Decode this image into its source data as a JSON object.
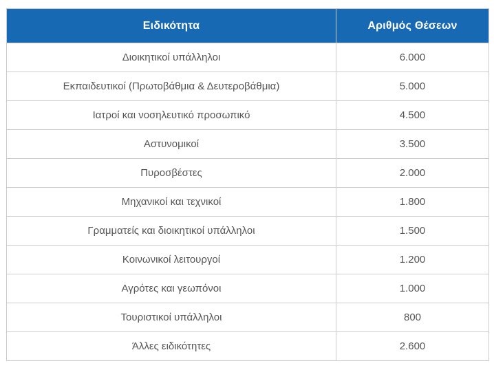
{
  "chart_data": {
    "type": "table",
    "title": "",
    "columns": [
      "Ειδικότητα",
      "Αριθμός Θέσεων"
    ],
    "rows": [
      {
        "specialty": "Διοικητικοί υπάλληλοι",
        "positions": "6.000"
      },
      {
        "specialty": "Εκπαιδευτικοί (Πρωτοβάθμια & Δευτεροβάθμια)",
        "positions": "5.000"
      },
      {
        "specialty": "Ιατροί και νοσηλευτικό προσωπικό",
        "positions": "4.500"
      },
      {
        "specialty": "Αστυνομικοί",
        "positions": "3.500"
      },
      {
        "specialty": "Πυροσβέστες",
        "positions": "2.000"
      },
      {
        "specialty": "Μηχανικοί και τεχνικοί",
        "positions": "1.800"
      },
      {
        "specialty": "Γραμματείς και διοικητικοί υπάλληλοι",
        "positions": "1.500"
      },
      {
        "specialty": "Κοινωνικοί λειτουργοί",
        "positions": "1.200"
      },
      {
        "specialty": "Αγρότες και γεωπόνοι",
        "positions": "1.000"
      },
      {
        "specialty": "Τουριστικοί υπάλληλοι",
        "positions": "800"
      },
      {
        "specialty": "Άλλες ειδικότητες",
        "positions": "2.600"
      }
    ],
    "values_numeric": [
      6000,
      5000,
      4500,
      3500,
      2000,
      1800,
      1500,
      1200,
      1000,
      800,
      2600
    ],
    "colors": {
      "header_bg": "#1669b2",
      "header_text": "#ffffff",
      "cell_text": "#555555",
      "border": "#cbcbcb",
      "row_bg": "#ffffff"
    }
  }
}
